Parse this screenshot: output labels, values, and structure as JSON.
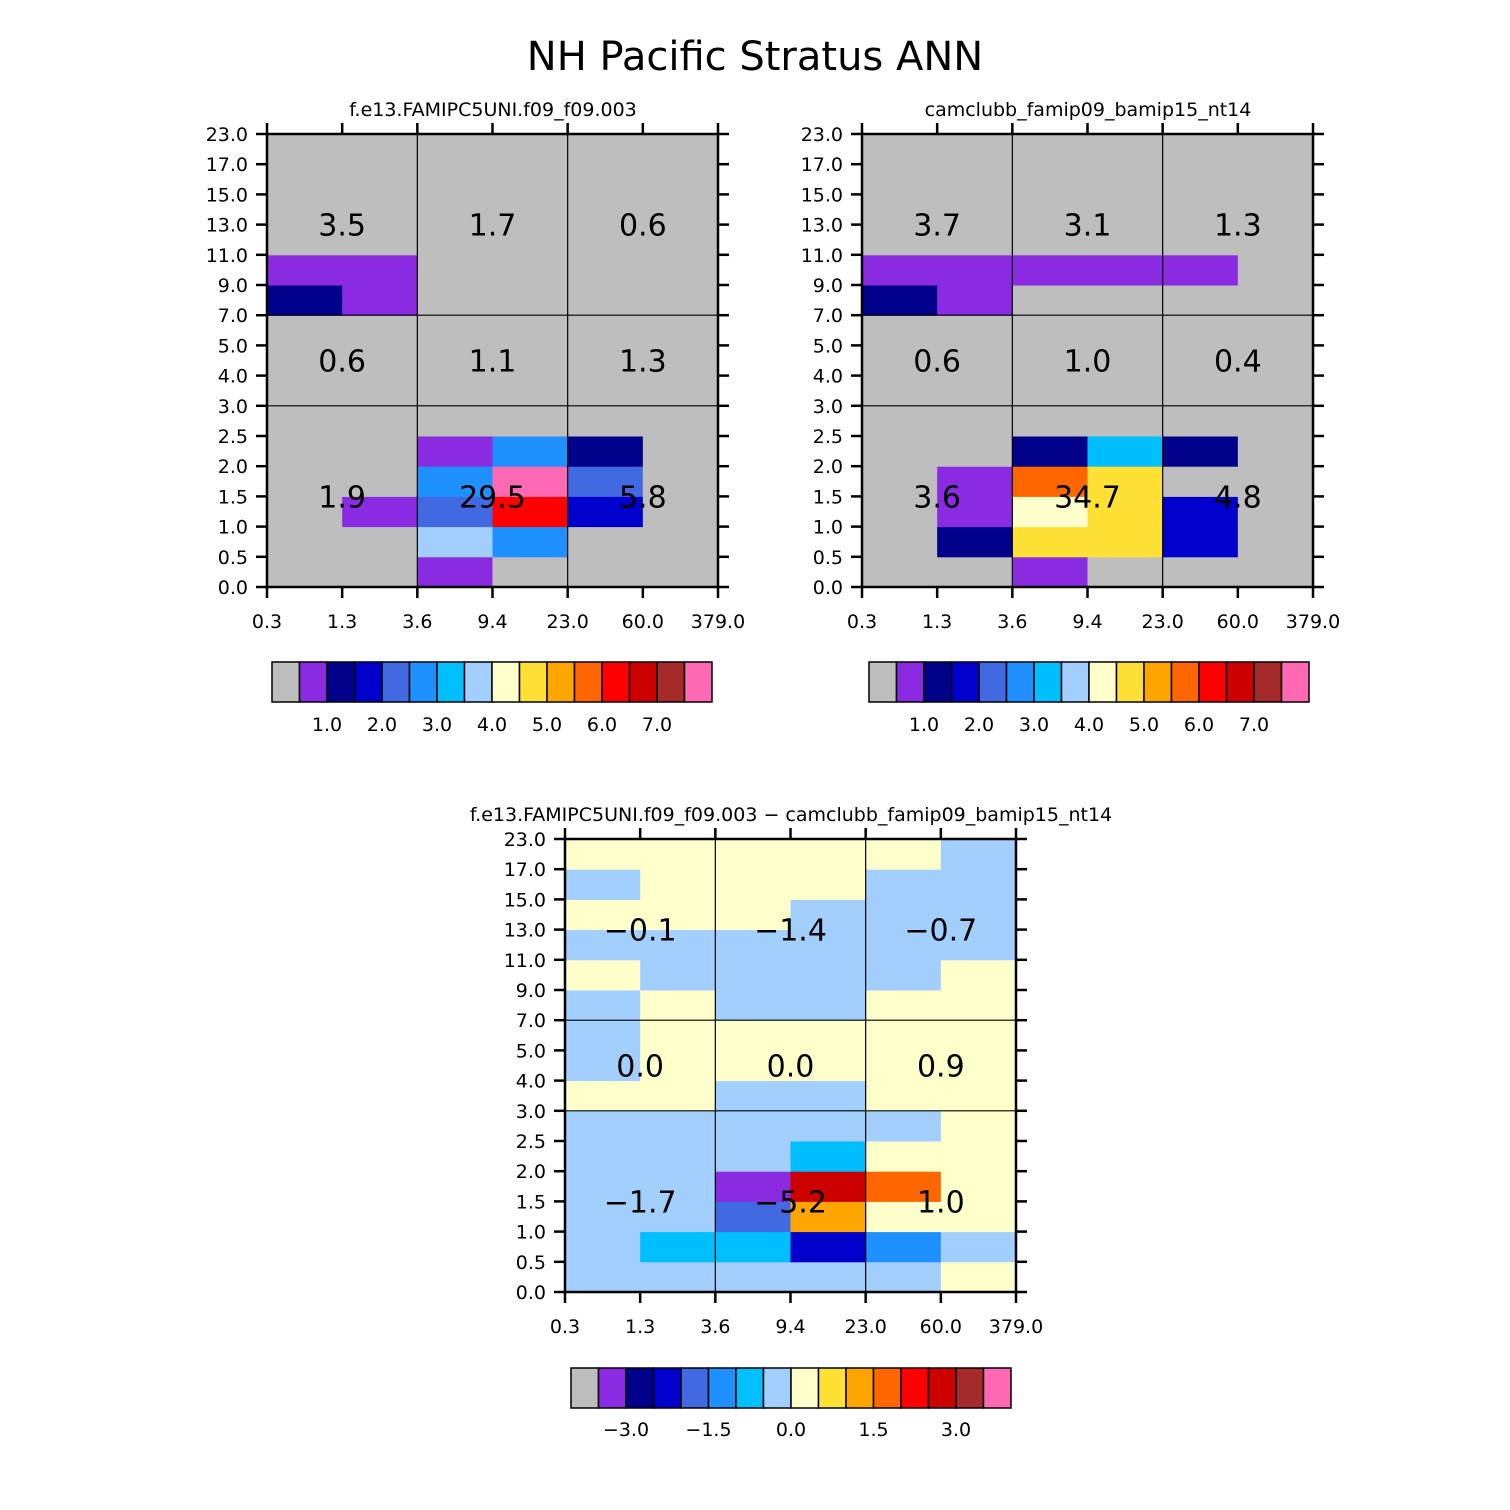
{
  "figure": {
    "title": "NH Pacific Stratus ANN"
  },
  "palette": [
    "#bebebe",
    "#8a2be2",
    "#00008b",
    "#0000cd",
    "#4169e1",
    "#1e90ff",
    "#00bfff",
    "#a2cffe",
    "#ffffcc",
    "#ffe135",
    "#ffa500",
    "#ff6600",
    "#ff0000",
    "#cd0000",
    "#a52a2a",
    "#ff69b4"
  ],
  "chart_data": [
    {
      "type": "heatmap",
      "title": "f.e13.FAMIPC5UNI.f09_f09.003",
      "x_tick_labels": [
        "0.3",
        "1.3",
        "3.6",
        "9.4",
        "23.0",
        "60.0",
        "379.0"
      ],
      "y_tick_labels": [
        "0.0",
        "0.5",
        "1.0",
        "1.5",
        "2.0",
        "2.5",
        "3.0",
        "4.0",
        "5.0",
        "7.0",
        "9.0",
        "11.0",
        "13.0",
        "15.0",
        "17.0",
        "23.0"
      ],
      "cells": [
        [
          0,
          0,
          1,
          0,
          0,
          0
        ],
        [
          0,
          0,
          7,
          5,
          0,
          0
        ],
        [
          0,
          1,
          4,
          12,
          3,
          0
        ],
        [
          0,
          0,
          5,
          15,
          4,
          0
        ],
        [
          0,
          0,
          1,
          5,
          2,
          0
        ],
        [
          0,
          0,
          0,
          0,
          0,
          0
        ],
        [
          0,
          0,
          0,
          0,
          0,
          0
        ],
        [
          0,
          0,
          0,
          0,
          0,
          0
        ],
        [
          0,
          0,
          0,
          0,
          0,
          0
        ],
        [
          2,
          1,
          0,
          0,
          0,
          0
        ],
        [
          1,
          1,
          0,
          0,
          0,
          0
        ],
        [
          0,
          0,
          0,
          0,
          0,
          0
        ],
        [
          0,
          0,
          0,
          0,
          0,
          0
        ],
        [
          0,
          0,
          0,
          0,
          0,
          0
        ],
        [
          0,
          0,
          0,
          0,
          0,
          0
        ]
      ],
      "group_values": [
        {
          "xi": 0,
          "yi": 0,
          "label": "1.9"
        },
        {
          "xi": 1,
          "yi": 0,
          "label": "29.5"
        },
        {
          "xi": 2,
          "yi": 0,
          "label": "5.8"
        },
        {
          "xi": 0,
          "yi": 1,
          "label": "0.6"
        },
        {
          "xi": 1,
          "yi": 1,
          "label": "1.1"
        },
        {
          "xi": 2,
          "yi": 1,
          "label": "1.3"
        },
        {
          "xi": 0,
          "yi": 2,
          "label": "3.5"
        },
        {
          "xi": 1,
          "yi": 2,
          "label": "1.7"
        },
        {
          "xi": 2,
          "yi": 2,
          "label": "0.6"
        }
      ],
      "colorbar_labels": [
        "1.0",
        "2.0",
        "3.0",
        "4.0",
        "5.0",
        "6.0",
        "7.0"
      ]
    },
    {
      "type": "heatmap",
      "title": "camclubb_famip09_bamip15_nt14",
      "x_tick_labels": [
        "0.3",
        "1.3",
        "3.6",
        "9.4",
        "23.0",
        "60.0",
        "379.0"
      ],
      "y_tick_labels": [
        "0.0",
        "0.5",
        "1.0",
        "1.5",
        "2.0",
        "2.5",
        "3.0",
        "4.0",
        "5.0",
        "7.0",
        "9.0",
        "11.0",
        "13.0",
        "15.0",
        "17.0",
        "23.0"
      ],
      "cells": [
        [
          0,
          0,
          1,
          0,
          0,
          0
        ],
        [
          0,
          2,
          9,
          9,
          3,
          0
        ],
        [
          0,
          1,
          8,
          9,
          3,
          0
        ],
        [
          0,
          1,
          11,
          9,
          0,
          0
        ],
        [
          0,
          0,
          2,
          6,
          2,
          0
        ],
        [
          0,
          0,
          0,
          0,
          0,
          0
        ],
        [
          0,
          0,
          0,
          0,
          0,
          0
        ],
        [
          0,
          0,
          0,
          0,
          0,
          0
        ],
        [
          0,
          0,
          0,
          0,
          0,
          0
        ],
        [
          2,
          1,
          0,
          0,
          0,
          0
        ],
        [
          1,
          1,
          1,
          1,
          1,
          0
        ],
        [
          0,
          0,
          0,
          0,
          0,
          0
        ],
        [
          0,
          0,
          0,
          0,
          0,
          0
        ],
        [
          0,
          0,
          0,
          0,
          0,
          0
        ],
        [
          0,
          0,
          0,
          0,
          0,
          0
        ]
      ],
      "group_values": [
        {
          "xi": 0,
          "yi": 0,
          "label": "3.6"
        },
        {
          "xi": 1,
          "yi": 0,
          "label": "34.7"
        },
        {
          "xi": 2,
          "yi": 0,
          "label": "4.8"
        },
        {
          "xi": 0,
          "yi": 1,
          "label": "0.6"
        },
        {
          "xi": 1,
          "yi": 1,
          "label": "1.0"
        },
        {
          "xi": 2,
          "yi": 1,
          "label": "0.4"
        },
        {
          "xi": 0,
          "yi": 2,
          "label": "3.7"
        },
        {
          "xi": 1,
          "yi": 2,
          "label": "3.1"
        },
        {
          "xi": 2,
          "yi": 2,
          "label": "1.3"
        }
      ],
      "colorbar_labels": [
        "1.0",
        "2.0",
        "3.0",
        "4.0",
        "5.0",
        "6.0",
        "7.0"
      ]
    },
    {
      "type": "heatmap",
      "title": "f.e13.FAMIPC5UNI.f09_f09.003 − camclubb_famip09_bamip15_nt14",
      "x_tick_labels": [
        "0.3",
        "1.3",
        "3.6",
        "9.4",
        "23.0",
        "60.0",
        "379.0"
      ],
      "y_tick_labels": [
        "0.0",
        "0.5",
        "1.0",
        "1.5",
        "2.0",
        "2.5",
        "3.0",
        "4.0",
        "5.0",
        "7.0",
        "9.0",
        "11.0",
        "13.0",
        "15.0",
        "17.0",
        "23.0"
      ],
      "cells": [
        [
          7,
          7,
          7,
          7,
          7,
          8
        ],
        [
          7,
          6,
          6,
          3,
          5,
          7
        ],
        [
          7,
          7,
          4,
          10,
          8,
          8
        ],
        [
          7,
          7,
          1,
          13,
          11,
          8
        ],
        [
          7,
          7,
          7,
          6,
          8,
          8
        ],
        [
          7,
          7,
          7,
          7,
          7,
          8
        ],
        [
          8,
          8,
          7,
          7,
          8,
          8
        ],
        [
          7,
          8,
          8,
          8,
          8,
          8
        ],
        [
          7,
          8,
          8,
          8,
          8,
          8
        ],
        [
          7,
          8,
          7,
          7,
          8,
          8
        ],
        [
          8,
          7,
          7,
          7,
          7,
          8
        ],
        [
          7,
          7,
          7,
          7,
          7,
          7
        ],
        [
          8,
          8,
          8,
          7,
          7,
          7
        ],
        [
          7,
          8,
          8,
          8,
          7,
          7
        ],
        [
          8,
          8,
          8,
          8,
          8,
          7
        ]
      ],
      "group_values": [
        {
          "xi": 0,
          "yi": 0,
          "label": "−1.7"
        },
        {
          "xi": 1,
          "yi": 0,
          "label": "−5.2"
        },
        {
          "xi": 2,
          "yi": 0,
          "label": "1.0"
        },
        {
          "xi": 0,
          "yi": 1,
          "label": "0.0"
        },
        {
          "xi": 1,
          "yi": 1,
          "label": "0.0"
        },
        {
          "xi": 2,
          "yi": 1,
          "label": "0.9"
        },
        {
          "xi": 0,
          "yi": 2,
          "label": "−0.1"
        },
        {
          "xi": 1,
          "yi": 2,
          "label": "−1.4"
        },
        {
          "xi": 2,
          "yi": 2,
          "label": "−0.7"
        }
      ],
      "colorbar_labels": [
        "−3.0",
        "−1.5",
        "0.0",
        "1.5",
        "3.0"
      ]
    }
  ]
}
